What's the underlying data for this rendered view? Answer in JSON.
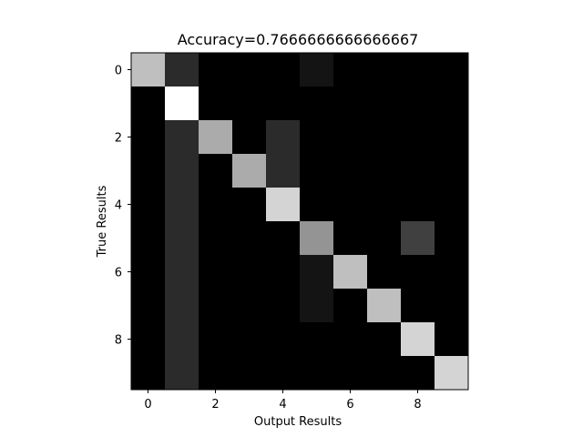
{
  "chart_data": {
    "type": "heatmap",
    "title": "Accuracy=0.7666666666666667",
    "xlabel": "Output Results",
    "ylabel": "True Results",
    "colormap": "gray",
    "grid": false,
    "legend": "none",
    "x_tick_values": [
      0,
      2,
      4,
      6,
      8
    ],
    "y_tick_values": [
      0,
      2,
      4,
      6,
      8
    ],
    "x_tick_labels": [
      "0",
      "2",
      "4",
      "6",
      "8"
    ],
    "y_tick_labels": [
      "0",
      "2",
      "4",
      "6",
      "8"
    ],
    "n_rows": 10,
    "n_cols": 10,
    "matrix": [
      [
        0.75,
        0.17,
        0.0,
        0.0,
        0.0,
        0.08,
        0.0,
        0.0,
        0.0,
        0.0
      ],
      [
        0.0,
        1.0,
        0.0,
        0.0,
        0.0,
        0.0,
        0.0,
        0.0,
        0.0,
        0.0
      ],
      [
        0.0,
        0.17,
        0.67,
        0.0,
        0.17,
        0.0,
        0.0,
        0.0,
        0.0,
        0.0
      ],
      [
        0.0,
        0.17,
        0.0,
        0.67,
        0.17,
        0.0,
        0.0,
        0.0,
        0.0,
        0.0
      ],
      [
        0.0,
        0.17,
        0.0,
        0.0,
        0.83,
        0.0,
        0.0,
        0.0,
        0.0,
        0.0
      ],
      [
        0.0,
        0.17,
        0.0,
        0.0,
        0.0,
        0.58,
        0.0,
        0.0,
        0.25,
        0.0
      ],
      [
        0.0,
        0.17,
        0.0,
        0.0,
        0.0,
        0.08,
        0.75,
        0.0,
        0.0,
        0.0
      ],
      [
        0.0,
        0.17,
        0.0,
        0.0,
        0.0,
        0.08,
        0.0,
        0.75,
        0.0,
        0.0
      ],
      [
        0.0,
        0.17,
        0.0,
        0.0,
        0.0,
        0.0,
        0.0,
        0.0,
        0.83,
        0.0
      ],
      [
        0.0,
        0.17,
        0.0,
        0.0,
        0.0,
        0.0,
        0.0,
        0.0,
        0.0,
        0.83
      ]
    ]
  }
}
